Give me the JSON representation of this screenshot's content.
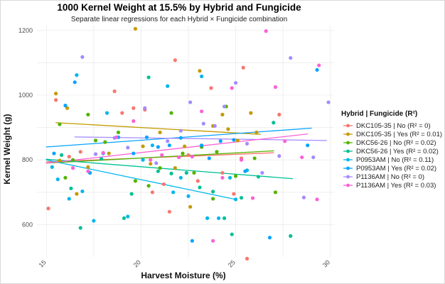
{
  "chart_data": {
    "type": "scatter",
    "title": "1000 Kernel Weight at 15.5% by Hybrid and Fungicide",
    "subtitle": "Separate linear regressions for each Hybrid × Fungicide combination",
    "xlabel": "Harvest Moisture (%)",
    "ylabel": "Kernel Weight (g)",
    "xlim": [
      14.5,
      30.2
    ],
    "ylim": [
      500,
      1215
    ],
    "x_ticks": [
      15,
      20,
      25,
      30
    ],
    "x_tick_labels": [
      "15",
      "20",
      "25",
      "30"
    ],
    "y_ticks": [
      600,
      800,
      1000,
      1200
    ],
    "y_tick_labels": [
      "600",
      "800",
      "1000",
      "1200"
    ],
    "grid": true,
    "legend_title": "Hybrid | Fungicide (R²)",
    "legend_position": "right",
    "series": [
      {
        "name": "DKC105-35 | No  (R² = 0)",
        "color": "#F8766D",
        "points": [
          [
            15.1,
            650
          ],
          [
            15.5,
            985
          ],
          [
            16.2,
            810
          ],
          [
            16.8,
            825
          ],
          [
            18.6,
            1012
          ],
          [
            19.0,
            945
          ],
          [
            19.6,
            960
          ],
          [
            20.2,
            955
          ],
          [
            20.6,
            700
          ],
          [
            21.2,
            725
          ],
          [
            21.5,
            640
          ],
          [
            21.8,
            1108
          ],
          [
            22.5,
            815
          ],
          [
            23.0,
            735
          ],
          [
            23.7,
            1022
          ],
          [
            24.3,
            760
          ],
          [
            24.9,
            695
          ],
          [
            25.3,
            805
          ],
          [
            25.4,
            1085
          ],
          [
            25.6,
            495
          ],
          [
            27.3,
            940
          ]
        ],
        "regression": {
          "x": [
            15.0,
            27.0
          ],
          "y": [
            794,
            822
          ]
        }
      },
      {
        "name": "DKC105-35 | Yes  (R² = 0.01)",
        "color": "#C49A00",
        "points": [
          [
            15.5,
            1005
          ],
          [
            15.7,
            798
          ],
          [
            16.1,
            960
          ],
          [
            16.6,
            695
          ],
          [
            17.2,
            778
          ],
          [
            18.3,
            820
          ],
          [
            19.7,
            1205
          ],
          [
            20.1,
            842
          ],
          [
            20.5,
            788
          ],
          [
            21.0,
            885
          ],
          [
            21.8,
            775
          ],
          [
            22.3,
            842
          ],
          [
            22.6,
            655
          ],
          [
            23.1,
            1075
          ],
          [
            23.8,
            905
          ],
          [
            24.3,
            940
          ],
          [
            24.6,
            895
          ],
          [
            25.1,
            860
          ],
          [
            25.8,
            945
          ],
          [
            26.1,
            885
          ]
        ],
        "regression": {
          "x": [
            15.5,
            26.3
          ],
          "y": [
            915,
            879
          ]
        }
      },
      {
        "name": "DKC56-26 | No  (R² = 0.02)",
        "color": "#53B400",
        "points": [
          [
            15.7,
            910
          ],
          [
            16.0,
            745
          ],
          [
            16.4,
            800
          ],
          [
            17.2,
            940
          ],
          [
            17.6,
            860
          ],
          [
            18.1,
            855
          ],
          [
            18.8,
            885
          ],
          [
            19.7,
            735
          ],
          [
            20.4,
            720
          ],
          [
            21.0,
            775
          ],
          [
            21.6,
            945
          ],
          [
            22.2,
            820
          ],
          [
            22.8,
            760
          ],
          [
            23.2,
            840
          ],
          [
            23.8,
            680
          ],
          [
            24.0,
            825
          ],
          [
            24.5,
            965
          ],
          [
            25.0,
            750
          ],
          [
            26.0,
            805
          ],
          [
            27.1,
            700
          ]
        ],
        "regression": {
          "x": [
            15.0,
            27.0
          ],
          "y": [
            790,
            828
          ]
        }
      },
      {
        "name": "DKC56-26 | Yes  (R² = 0.02)",
        "color": "#00C094",
        "points": [
          [
            15.8,
            815
          ],
          [
            16.3,
            712
          ],
          [
            16.8,
            590
          ],
          [
            17.3,
            760
          ],
          [
            17.9,
            803
          ],
          [
            19.1,
            620
          ],
          [
            19.5,
            695
          ],
          [
            20.4,
            1055
          ],
          [
            20.9,
            765
          ],
          [
            21.6,
            758
          ],
          [
            22.4,
            760
          ],
          [
            23.1,
            715
          ],
          [
            23.8,
            702
          ],
          [
            24.4,
            620
          ],
          [
            24.8,
            570
          ],
          [
            25.3,
            683
          ],
          [
            26.2,
            748
          ],
          [
            27.0,
            915
          ],
          [
            27.9,
            565
          ]
        ],
        "regression": {
          "x": [
            15.0,
            28.0
          ],
          "y": [
            802,
            742
          ]
        }
      },
      {
        "name": "P0953AM | No  (R² = 0.11)",
        "color": "#00B6EB",
        "points": [
          [
            15.3,
            778
          ],
          [
            15.6,
            740
          ],
          [
            16.2,
            680
          ],
          [
            16.6,
            1062
          ],
          [
            16.9,
            703
          ],
          [
            17.5,
            612
          ],
          [
            18.2,
            945
          ],
          [
            19.3,
            625
          ],
          [
            20.1,
            800
          ],
          [
            20.6,
            845
          ],
          [
            21.4,
            1028
          ],
          [
            21.7,
            700
          ],
          [
            22.1,
            745
          ],
          [
            22.5,
            688
          ],
          [
            23.2,
            1058
          ],
          [
            23.5,
            620
          ],
          [
            24.1,
            620
          ],
          [
            24.7,
            745
          ],
          [
            25.0,
            678
          ],
          [
            25.6,
            768
          ]
        ],
        "regression": {
          "x": [
            15.0,
            25.0
          ],
          "y": [
            800,
            678
          ]
        }
      },
      {
        "name": "P0953AM | Yes  (R² = 0.02)",
        "color": "#06A4FF",
        "points": [
          [
            15.4,
            820
          ],
          [
            16.0,
            968
          ],
          [
            16.5,
            1040
          ],
          [
            17.3,
            760
          ],
          [
            18.0,
            820
          ],
          [
            18.8,
            870
          ],
          [
            19.6,
            820
          ],
          [
            20.3,
            870
          ],
          [
            20.9,
            840
          ],
          [
            21.5,
            845
          ],
          [
            22.1,
            868
          ],
          [
            22.7,
            550
          ],
          [
            23.2,
            845
          ],
          [
            23.6,
            805
          ],
          [
            24.2,
            858
          ],
          [
            24.9,
            862
          ],
          [
            25.5,
            765
          ],
          [
            26.8,
            560
          ],
          [
            28.8,
            845
          ],
          [
            29.3,
            1078
          ]
        ],
        "regression": {
          "x": [
            15.0,
            29.0
          ],
          "y": [
            840,
            898
          ]
        }
      },
      {
        "name": "P1136AM | No  (R² = 0)",
        "color": "#A58AFF",
        "points": [
          [
            16.9,
            1118
          ],
          [
            17.6,
            818
          ],
          [
            18.6,
            868
          ],
          [
            19.3,
            838
          ],
          [
            20.2,
            960
          ],
          [
            20.8,
            790
          ],
          [
            21.4,
            858
          ],
          [
            22.1,
            890
          ],
          [
            22.6,
            978
          ],
          [
            23.3,
            912
          ],
          [
            23.9,
            905
          ],
          [
            24.4,
            965
          ],
          [
            25.0,
            1038
          ],
          [
            25.6,
            850
          ],
          [
            26.4,
            760
          ],
          [
            27.3,
            812
          ],
          [
            27.9,
            1115
          ],
          [
            28.6,
            684
          ],
          [
            29.1,
            808
          ],
          [
            29.9,
            978
          ]
        ],
        "regression": {
          "x": [
            16.5,
            29.8
          ],
          "y": [
            871,
            860
          ]
        }
      },
      {
        "name": "P1136AM | Yes  (R² = 0.03)",
        "color": "#FB61D7",
        "points": [
          [
            16.4,
            775
          ],
          [
            17.2,
            765
          ],
          [
            18.0,
            822
          ],
          [
            18.7,
            870
          ],
          [
            19.6,
            920
          ],
          [
            20.5,
            800
          ],
          [
            21.1,
            815
          ],
          [
            22.0,
            808
          ],
          [
            22.7,
            810
          ],
          [
            23.2,
            950
          ],
          [
            23.8,
            550
          ],
          [
            24.3,
            745
          ],
          [
            24.8,
            1022
          ],
          [
            25.3,
            800
          ],
          [
            25.9,
            682
          ],
          [
            26.6,
            1198
          ],
          [
            27.1,
            1025
          ],
          [
            27.6,
            858
          ],
          [
            28.5,
            808
          ],
          [
            29.3,
            678
          ],
          [
            29.4,
            1092
          ]
        ],
        "regression": {
          "x": [
            15.0,
            28.8
          ],
          "y": [
            790,
            880
          ]
        }
      }
    ]
  }
}
